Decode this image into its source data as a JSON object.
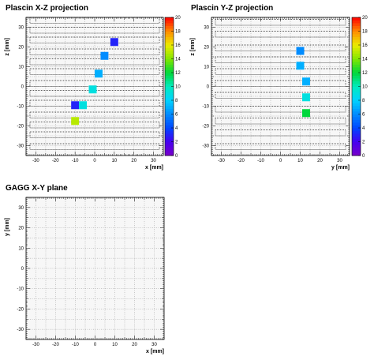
{
  "chart_data": [
    {
      "type": "heatmap",
      "title": "Plascin X-Z projection",
      "xlabel": "x [mm]",
      "ylabel": "z [mm]",
      "xlim": [
        -35,
        35
      ],
      "ylim": [
        -35,
        35
      ],
      "xticks": [
        -30,
        -20,
        -10,
        0,
        10,
        20,
        30
      ],
      "yticks": [
        -30,
        -20,
        -10,
        0,
        10,
        20,
        30
      ],
      "grid": true,
      "strip_rows_z": [
        33.5,
        28.5,
        23.5,
        17.5,
        12.5,
        7.5,
        1.5,
        -3.5,
        -8.5,
        -14.5,
        -19.5,
        -24.5,
        -30.5
      ],
      "cells": [
        {
          "x": 10,
          "z": 22.5,
          "value": 3
        },
        {
          "x": 5,
          "z": 15.5,
          "value": 6
        },
        {
          "x": 2,
          "z": 6.5,
          "value": 7
        },
        {
          "x": -1,
          "z": -1.5,
          "value": 9
        },
        {
          "x": -10,
          "z": -9.5,
          "value": 3
        },
        {
          "x": -6,
          "z": -9.5,
          "value": 9
        },
        {
          "x": -10,
          "z": -17.5,
          "value": 15
        }
      ],
      "colorbar": {
        "min": 0,
        "max": 20,
        "ticks": [
          0,
          2,
          4,
          6,
          8,
          10,
          12,
          14,
          16,
          18,
          20
        ]
      }
    },
    {
      "type": "heatmap",
      "title": "Plascin Y-Z projection",
      "xlabel": "y [mm]",
      "ylabel": "z [mm]",
      "xlim": [
        -35,
        35
      ],
      "ylim": [
        -35,
        35
      ],
      "xticks": [
        -30,
        -20,
        -10,
        0,
        10,
        20,
        30
      ],
      "yticks": [
        -30,
        -20,
        -10,
        0,
        10,
        20,
        30
      ],
      "grid": true,
      "strip_rows_z": [
        32.5,
        26.5,
        19.5,
        13.5,
        7.5,
        1.5,
        -4.5,
        -11.5,
        -17.5,
        -23.5,
        -30.5
      ],
      "cells": [
        {
          "x": 10,
          "z": 18,
          "value": 6
        },
        {
          "x": 10,
          "z": 10.5,
          "value": 7
        },
        {
          "x": 13,
          "z": 2.5,
          "value": 7
        },
        {
          "x": 13,
          "z": -5.5,
          "value": 9
        },
        {
          "x": 13,
          "z": -13.5,
          "value": 12
        }
      ],
      "colorbar": {
        "min": 0,
        "max": 20,
        "ticks": [
          0,
          2,
          4,
          6,
          8,
          10,
          12,
          14,
          16,
          18,
          20
        ]
      }
    },
    {
      "type": "heatmap",
      "title": "GAGG X-Y plane",
      "xlabel": "x [mm]",
      "ylabel": "y [mm]",
      "xlim": [
        -35,
        35
      ],
      "ylim": [
        -35,
        35
      ],
      "xticks": [
        -30,
        -20,
        -10,
        0,
        10,
        20,
        30
      ],
      "yticks": [
        -30,
        -20,
        -10,
        0,
        10,
        20,
        30
      ],
      "grid": true,
      "cells": []
    }
  ]
}
